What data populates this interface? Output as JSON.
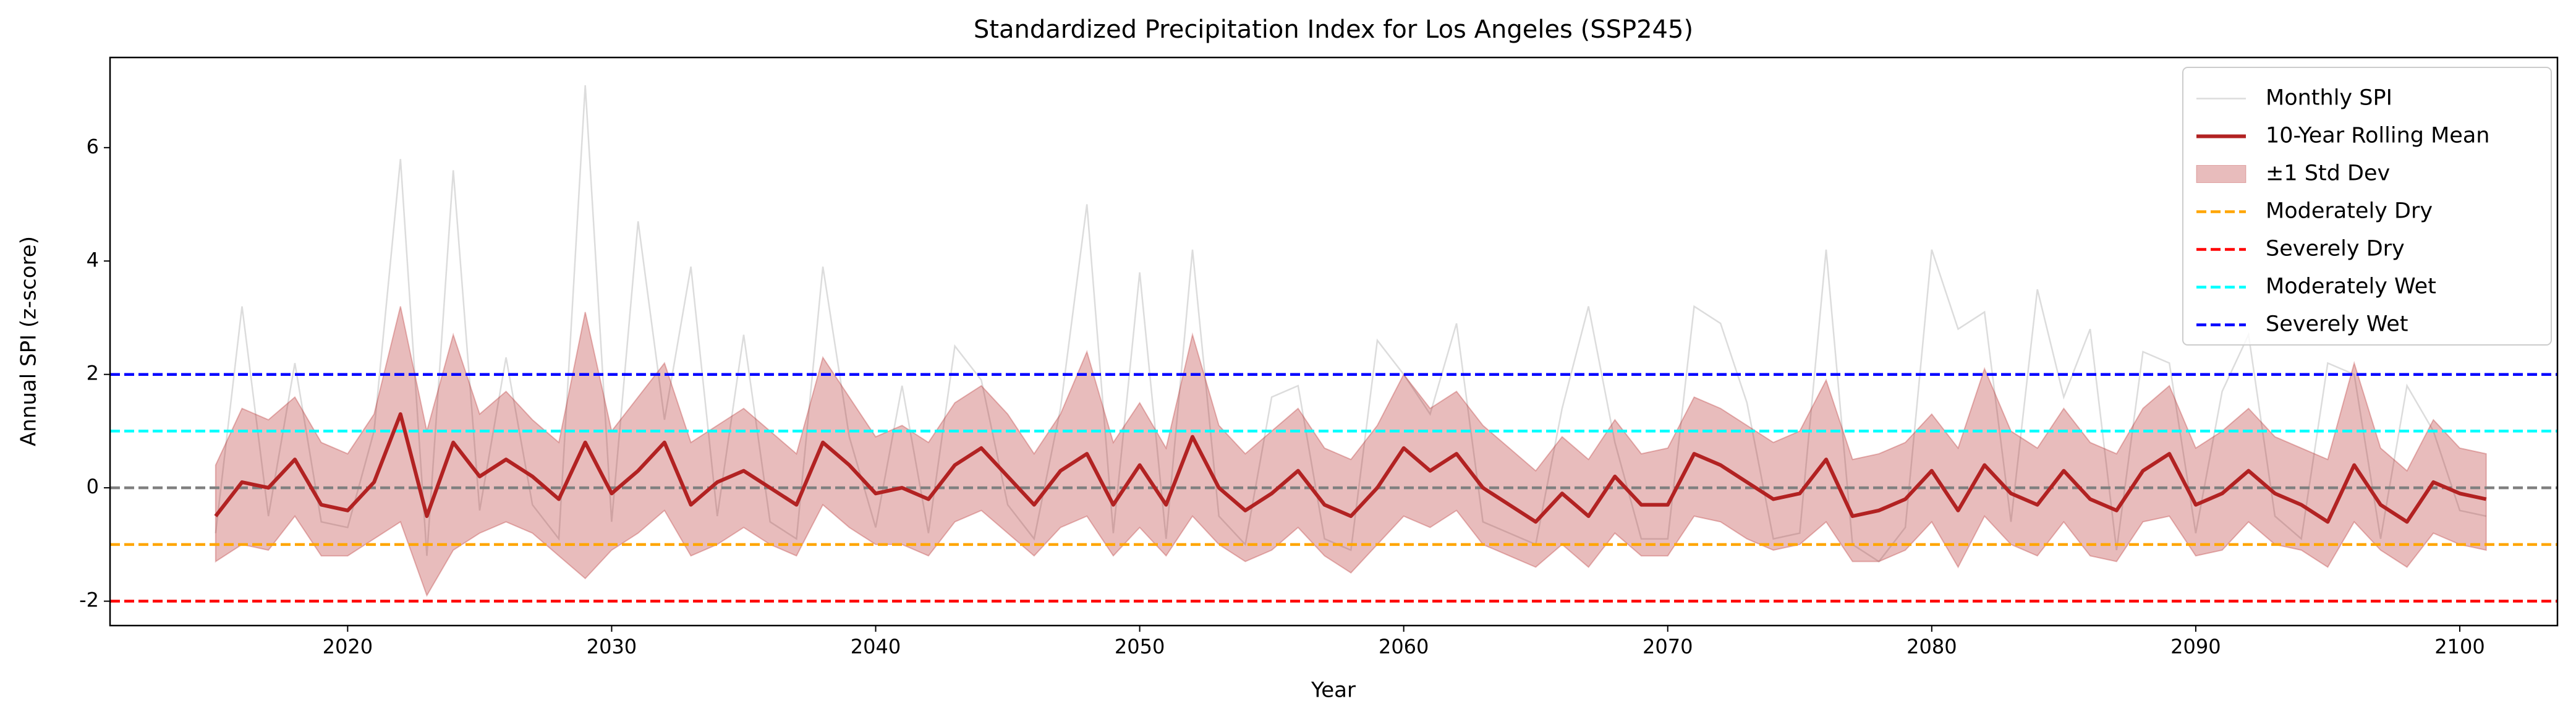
{
  "chart_data": {
    "type": "line",
    "title": "Standardized Precipitation Index for Los Angeles (SSP245)",
    "xlabel": "Year",
    "ylabel": "Annual SPI (z-score)",
    "x": [
      2015,
      2016,
      2017,
      2018,
      2019,
      2020,
      2021,
      2022,
      2023,
      2024,
      2025,
      2026,
      2027,
      2028,
      2029,
      2030,
      2031,
      2032,
      2033,
      2034,
      2035,
      2036,
      2037,
      2038,
      2039,
      2040,
      2041,
      2042,
      2043,
      2044,
      2045,
      2046,
      2047,
      2048,
      2049,
      2050,
      2051,
      2052,
      2053,
      2054,
      2055,
      2056,
      2057,
      2058,
      2059,
      2060,
      2061,
      2062,
      2063,
      2064,
      2065,
      2066,
      2067,
      2068,
      2069,
      2070,
      2071,
      2072,
      2073,
      2074,
      2075,
      2076,
      2077,
      2078,
      2079,
      2080,
      2081,
      2082,
      2083,
      2084,
      2085,
      2086,
      2087,
      2088,
      2089,
      2090,
      2091,
      2092,
      2093,
      2094,
      2095,
      2096,
      2097,
      2098,
      2099,
      2100,
      2101
    ],
    "series": [
      {
        "name": "Monthly SPI",
        "color": "#dcdcdc",
        "width": 2.5,
        "values": [
          -0.8,
          3.2,
          -0.5,
          2.2,
          -0.6,
          -0.7,
          1.0,
          5.8,
          -1.2,
          5.6,
          -0.4,
          2.3,
          -0.3,
          -0.9,
          7.1,
          -0.6,
          4.7,
          1.2,
          3.9,
          -0.5,
          2.7,
          -0.6,
          -0.9,
          3.9,
          0.9,
          -0.7,
          1.8,
          -0.8,
          2.5,
          1.9,
          -0.3,
          -0.9,
          1.4,
          5.0,
          -0.8,
          3.8,
          -0.9,
          4.2,
          -0.5,
          -1.0,
          1.6,
          1.8,
          -0.9,
          -1.1,
          2.6,
          2.0,
          1.3,
          2.9,
          -0.6,
          -0.8,
          -1.0,
          1.4,
          3.2,
          0.8,
          -0.9,
          -0.9,
          3.2,
          2.9,
          1.5,
          -0.9,
          -0.8,
          4.2,
          -1.0,
          -1.3,
          -0.7,
          4.2,
          2.8,
          3.1,
          -0.6,
          3.5,
          1.6,
          2.8,
          -1.1,
          2.4,
          2.2,
          -0.8,
          1.7,
          2.7,
          -0.5,
          -0.9,
          2.2,
          2.0,
          -0.9,
          1.8,
          1.0,
          -0.4,
          -0.5
        ]
      },
      {
        "name": "10-Year Rolling Mean",
        "color": "#b22222",
        "width": 6,
        "values": [
          -0.5,
          0.1,
          0.0,
          0.5,
          -0.3,
          -0.4,
          0.1,
          1.3,
          -0.5,
          0.8,
          0.2,
          0.5,
          0.2,
          -0.2,
          0.8,
          -0.1,
          0.3,
          0.8,
          -0.3,
          0.1,
          0.3,
          0.0,
          -0.3,
          0.8,
          0.4,
          -0.1,
          0.0,
          -0.2,
          0.4,
          0.7,
          0.2,
          -0.3,
          0.3,
          0.6,
          -0.3,
          0.4,
          -0.3,
          0.9,
          0.0,
          -0.4,
          -0.1,
          0.3,
          -0.3,
          -0.5,
          0.0,
          0.7,
          0.3,
          0.6,
          0.0,
          -0.3,
          -0.6,
          -0.1,
          -0.5,
          0.2,
          -0.3,
          -0.3,
          0.6,
          0.4,
          0.1,
          -0.2,
          -0.1,
          0.5,
          -0.5,
          -0.4,
          -0.2,
          0.3,
          -0.4,
          0.4,
          -0.1,
          -0.3,
          0.3,
          -0.2,
          -0.4,
          0.3,
          0.6,
          -0.3,
          -0.1,
          0.3,
          -0.1,
          -0.3,
          -0.6,
          0.4,
          -0.3,
          -0.6,
          0.1,
          -0.1,
          -0.2
        ]
      }
    ],
    "band": {
      "name": "±1 Std Dev",
      "color": "#b22222",
      "opacity": 0.3,
      "upper": [
        0.4,
        1.4,
        1.2,
        1.6,
        0.8,
        0.6,
        1.3,
        3.2,
        1.0,
        2.7,
        1.3,
        1.7,
        1.2,
        0.8,
        3.1,
        1.0,
        1.6,
        2.2,
        0.8,
        1.1,
        1.4,
        1.0,
        0.6,
        2.3,
        1.6,
        0.9,
        1.1,
        0.8,
        1.5,
        1.8,
        1.3,
        0.6,
        1.3,
        2.4,
        0.8,
        1.5,
        0.7,
        2.7,
        1.1,
        0.6,
        1.0,
        1.4,
        0.7,
        0.5,
        1.1,
        2.0,
        1.4,
        1.7,
        1.1,
        0.7,
        0.3,
        0.9,
        0.5,
        1.2,
        0.6,
        0.7,
        1.6,
        1.4,
        1.1,
        0.8,
        1.0,
        1.9,
        0.5,
        0.6,
        0.8,
        1.3,
        0.7,
        2.1,
        1.0,
        0.7,
        1.4,
        0.8,
        0.6,
        1.4,
        1.8,
        0.7,
        1.0,
        1.4,
        0.9,
        0.7,
        0.5,
        2.2,
        0.7,
        0.3,
        1.2,
        0.7,
        0.6
      ],
      "lower": [
        -1.3,
        -1.0,
        -1.1,
        -0.5,
        -1.2,
        -1.2,
        -0.9,
        -0.6,
        -1.9,
        -1.1,
        -0.8,
        -0.6,
        -0.8,
        -1.2,
        -1.6,
        -1.1,
        -0.8,
        -0.4,
        -1.2,
        -1.0,
        -0.7,
        -1.0,
        -1.2,
        -0.3,
        -0.7,
        -1.0,
        -1.0,
        -1.2,
        -0.6,
        -0.4,
        -0.8,
        -1.2,
        -0.7,
        -0.5,
        -1.2,
        -0.7,
        -1.2,
        -0.5,
        -1.0,
        -1.3,
        -1.1,
        -0.7,
        -1.2,
        -1.5,
        -1.0,
        -0.5,
        -0.7,
        -0.4,
        -1.0,
        -1.2,
        -1.4,
        -1.0,
        -1.4,
        -0.8,
        -1.2,
        -1.2,
        -0.5,
        -0.6,
        -0.9,
        -1.1,
        -1.0,
        -0.6,
        -1.3,
        -1.3,
        -1.1,
        -0.6,
        -1.4,
        -0.5,
        -1.0,
        -1.2,
        -0.6,
        -1.2,
        -1.3,
        -0.6,
        -0.5,
        -1.2,
        -1.1,
        -0.6,
        -1.0,
        -1.1,
        -1.4,
        -0.6,
        -1.1,
        -1.4,
        -0.8,
        -1.0,
        -1.1
      ]
    },
    "reference_lines": [
      {
        "value": 0,
        "color": "#808080"
      },
      {
        "name": "Moderately Dry",
        "value": -1,
        "color": "#ffa500"
      },
      {
        "name": "Severely Dry",
        "value": -2,
        "color": "#ff0000"
      },
      {
        "name": "Moderately Wet",
        "value": 1,
        "color": "#00ffff"
      },
      {
        "name": "Severely Wet",
        "value": 2,
        "color": "#0000ff"
      }
    ],
    "xlim": [
      2011,
      2103.7
    ],
    "ylim": [
      -2.43,
      7.59
    ],
    "xticks": [
      2020,
      2030,
      2040,
      2050,
      2060,
      2070,
      2080,
      2090,
      2100
    ],
    "yticks": [
      -2,
      0,
      2,
      4,
      6
    ],
    "legend": "upper right"
  }
}
